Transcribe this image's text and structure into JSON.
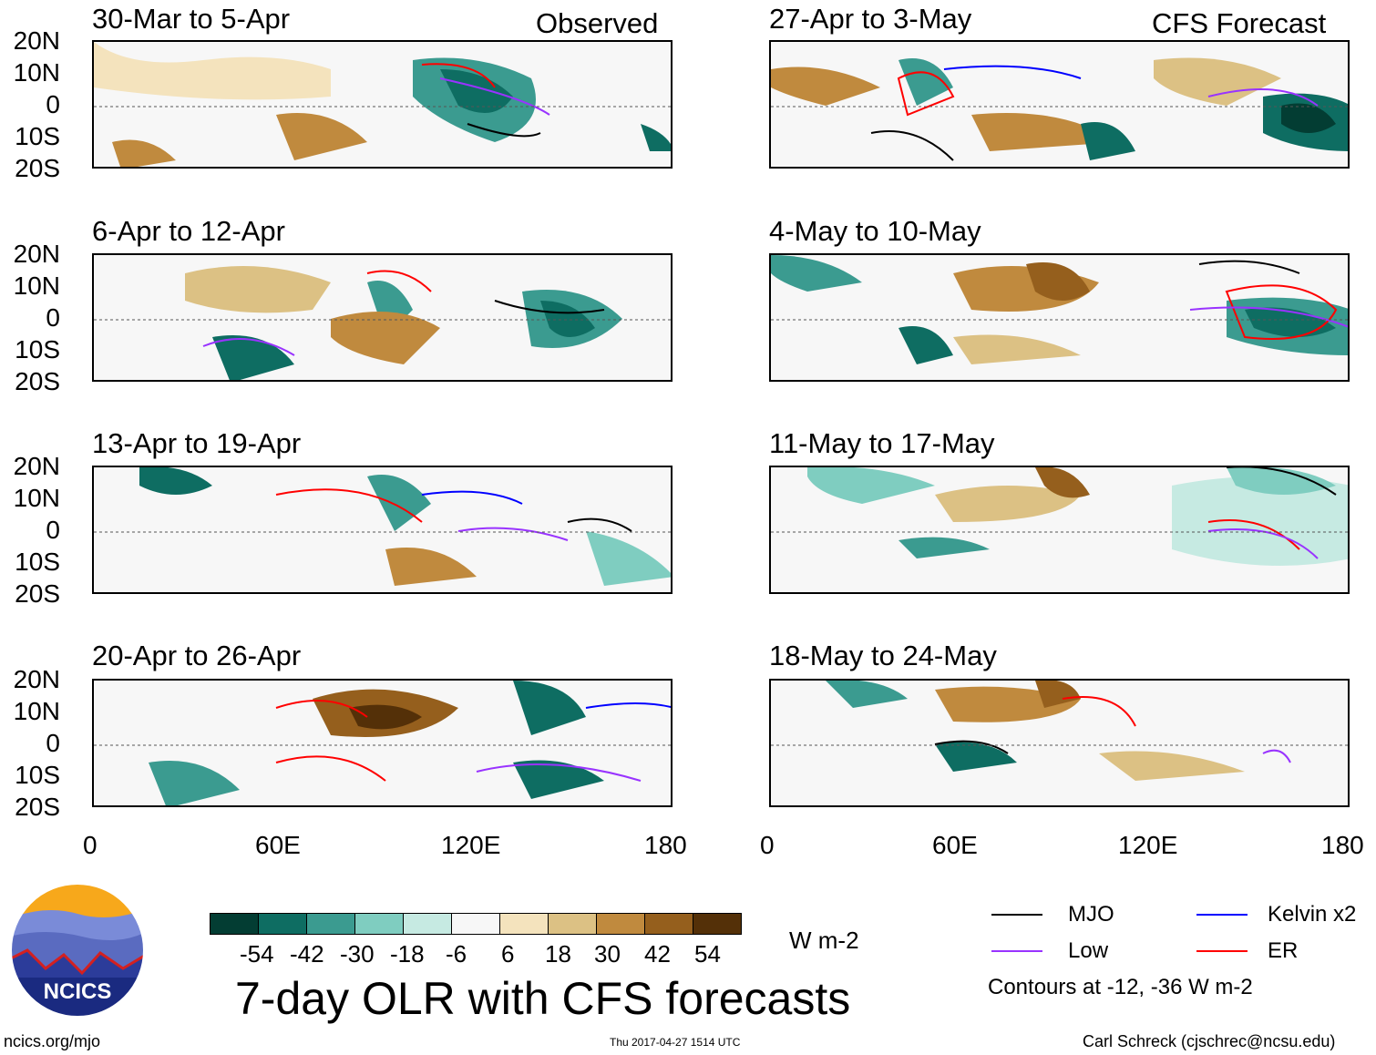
{
  "columns": {
    "observed_label": "Observed",
    "forecast_label": "CFS Forecast"
  },
  "panels_observed": [
    {
      "title": "30-Mar to 5-Apr"
    },
    {
      "title": "6-Apr to 12-Apr"
    },
    {
      "title": "13-Apr to 19-Apr"
    },
    {
      "title": "20-Apr to 26-Apr"
    }
  ],
  "panels_forecast": [
    {
      "title": "27-Apr to 3-May"
    },
    {
      "title": "4-May to 10-May"
    },
    {
      "title": "11-May to 17-May"
    },
    {
      "title": "18-May to 24-May"
    }
  ],
  "lat_labels": [
    "20N",
    "10N",
    "0",
    "10S",
    "20S"
  ],
  "lon_labels": [
    "0",
    "60E",
    "120E",
    "180"
  ],
  "colorbar": {
    "colors": [
      "#033d33",
      "#0e6d62",
      "#3b9b90",
      "#7fcdc0",
      "#c6eae2",
      "#f7f7f7",
      "#f4e3bd",
      "#dcc184",
      "#c08a3e",
      "#955f1d",
      "#543008"
    ],
    "labels": [
      "-54",
      "-42",
      "-30",
      "-18",
      "-6",
      "6",
      "18",
      "30",
      "42",
      "54"
    ],
    "unit": "W m-2"
  },
  "title": "7-day OLR with CFS forecasts",
  "legend": {
    "mjo": {
      "label": "MJO",
      "color": "#000000"
    },
    "kelvin": {
      "label": "Kelvin x2",
      "color": "#0000ff"
    },
    "low": {
      "label": "Low",
      "color": "#9933ff"
    },
    "er": {
      "label": "ER",
      "color": "#ff0000"
    },
    "note": "Contours at -12, -36 W m-2"
  },
  "footer": {
    "url": "ncics.org/mjo",
    "timestamp": "Thu 2017-04-27 1514 UTC",
    "credit": "Carl Schreck (cjschrec@ncsu.edu)",
    "logo_text": "NCICS"
  }
}
